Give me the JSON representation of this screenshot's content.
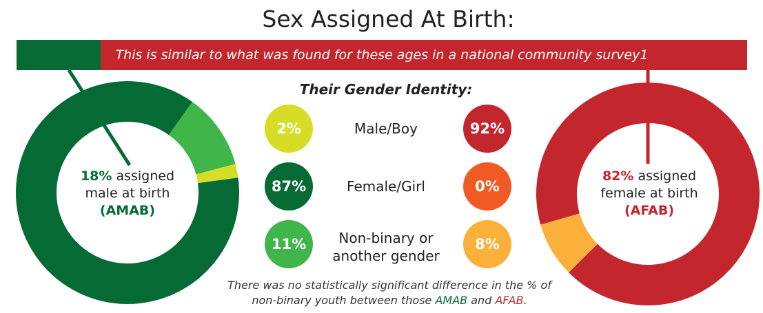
{
  "title": "Sex Assigned At Birth:",
  "banner_text": "This is similar to what was found for these ages in a national community survey1",
  "gender_identity_title": "Their Gender Identity:",
  "amab": {
    "pct": "18%",
    "line1": " assigned",
    "line2": "male at birth",
    "abbr": "(AMAB)"
  },
  "afab": {
    "pct": "82%",
    "line1": " assigned",
    "line2": "female at birth",
    "abbr": "(AFAB)"
  },
  "categories": [
    {
      "label1": "Male/Boy",
      "label2": "",
      "amab": "2%",
      "afab": "92%"
    },
    {
      "label1": "Female/Girl",
      "label2": "",
      "amab": "87%",
      "afab": "0%"
    },
    {
      "label1": "Non-binary or",
      "label2": "another gender",
      "amab": "11%",
      "afab": "8%"
    }
  ],
  "note": {
    "line1": "There was no statistically significant difference in the % of",
    "line2_prefix": "non-binary youth between those ",
    "amab": "AMAB",
    "and": " and ",
    "afab": "AFAB",
    "end": "."
  },
  "colors": {
    "amab_male": "#d6dd26",
    "amab_female": "#066a35",
    "amab_nonbinary": "#3fb54a",
    "afab_male": "#c4262e",
    "afab_female": "#f15a24",
    "afab_nonbinary": "#fbb03b"
  },
  "chart_data": [
    {
      "type": "pie",
      "categories": [
        "Male/Boy",
        "Female/Girl",
        "Non-binary or another gender"
      ],
      "values": [
        2,
        87,
        11
      ]
    },
    {
      "type": "pie",
      "categories": [
        "Male/Boy",
        "Female/Girl",
        "Non-binary or another gender"
      ],
      "values": [
        92,
        0,
        8
      ]
    }
  ]
}
